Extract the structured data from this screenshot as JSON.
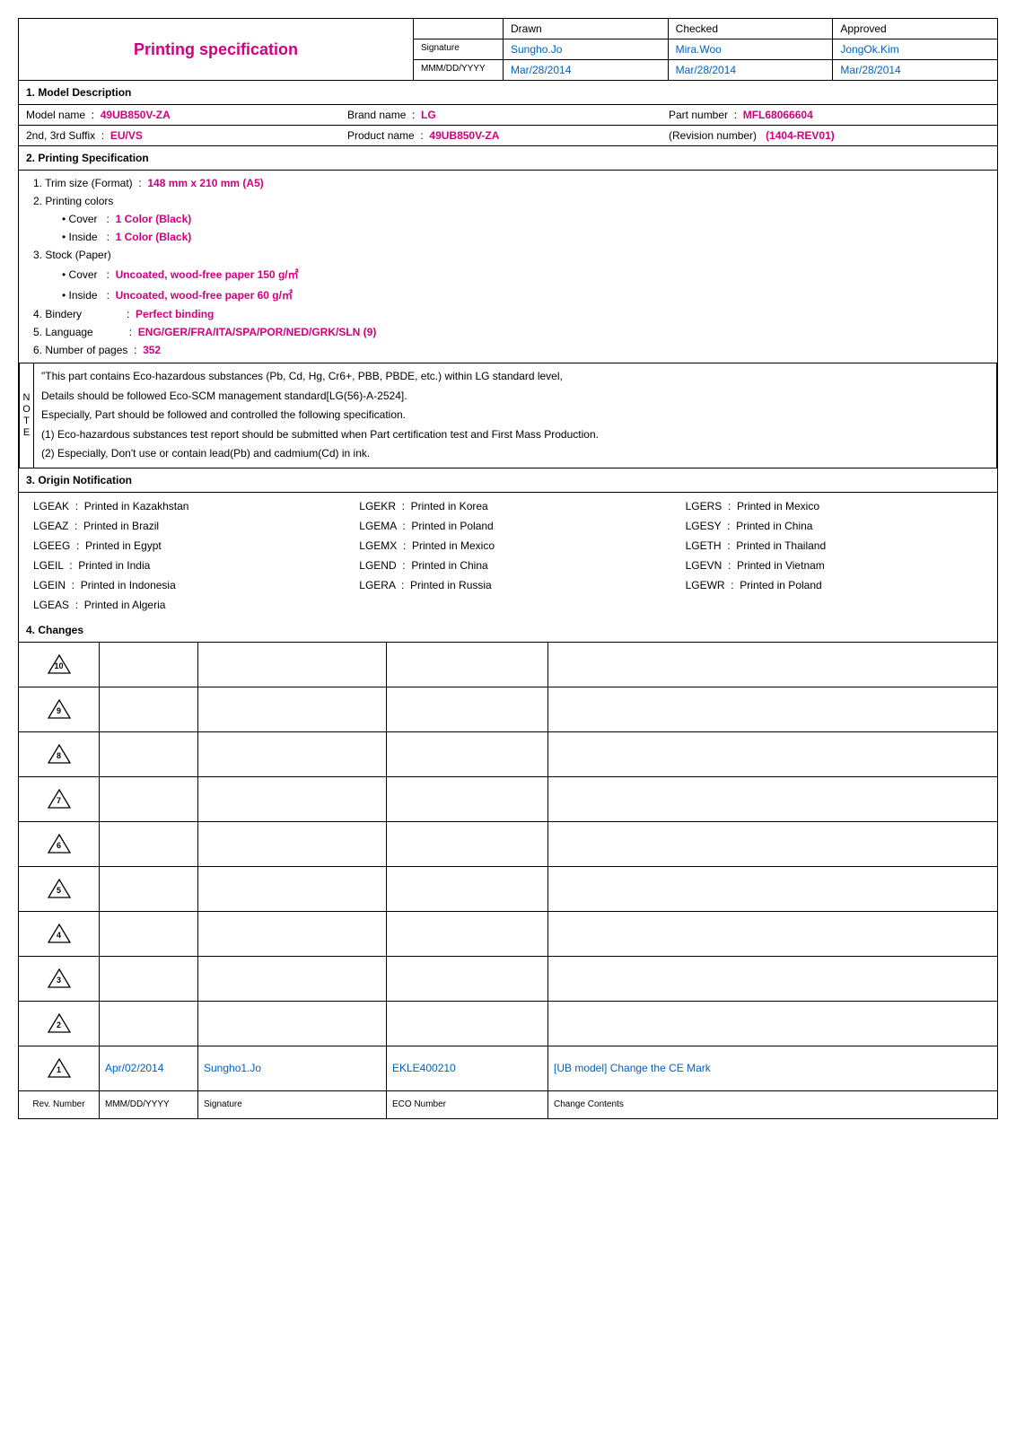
{
  "title": "Printing specification",
  "header": {
    "sig_label": "Signature",
    "date_label": "MMM/DD/YYYY",
    "drawn_label": "Drawn",
    "checked_label": "Checked",
    "approved_label": "Approved",
    "drawn": "Sungho.Jo",
    "checked": "Mira.Woo",
    "approved": "JongOk.Kim",
    "drawn_date": "Mar/28/2014",
    "checked_date": "Mar/28/2014",
    "approved_date": "Mar/28/2014"
  },
  "s1": {
    "head": "1. Model Description",
    "model_label": "Model name",
    "model": "49UB850V-ZA",
    "brand_label": "Brand name",
    "brand": "LG",
    "part_label": "Part number",
    "part": "MFL68066604",
    "suffix_label": "2nd, 3rd Suffix",
    "suffix": "EU/VS",
    "product_label": "Product name",
    "product": "49UB850V-ZA",
    "rev_label": "(Revision number)",
    "rev": "(1404-REV01)"
  },
  "s2": {
    "head": "2. Printing Specification",
    "trim_label": "1. Trim size (Format)",
    "trim": "148 mm x 210 mm (A5)",
    "colors_label": "2. Printing colors",
    "cover_label": "• Cover",
    "cover_color": "1 Color (Black)",
    "inside_label": "• Inside",
    "inside_color": "1 Color (Black)",
    "stock_label": "3. Stock (Paper)",
    "cover_paper": "Uncoated, wood-free paper 150 g/㎡",
    "inside_paper": "Uncoated, wood-free paper 60 g/㎡",
    "bindery_label": "4. Bindery",
    "bindery": "Perfect binding",
    "lang_label": "5. Language",
    "lang": "ENG/GER/FRA/ITA/SPA/POR/NED/GRK/SLN (9)",
    "pages_label": "6. Number of pages",
    "pages": "352"
  },
  "note": {
    "side": "NOTE",
    "l1": "\"This part contains Eco-hazardous substances (Pb, Cd, Hg, Cr6+, PBB, PBDE, etc.) within LG standard level,",
    "l2": "Details should be followed Eco-SCM management standard[LG(56)-A-2524].",
    "l3": "Especially, Part should be followed and controlled the following specification.",
    "l4": "(1) Eco-hazardous substances test report should be submitted when Part certification test and First Mass Production.",
    "l5": "(2) Especially, Don't use or contain lead(Pb) and cadmium(Cd) in ink."
  },
  "s3": {
    "head": "3. Origin Notification",
    "items": [
      {
        "code": "LGEAK",
        "text": "Printed in Kazakhstan"
      },
      {
        "code": "LGEKR",
        "text": "Printed in Korea"
      },
      {
        "code": "LGERS",
        "text": "Printed in Mexico"
      },
      {
        "code": "LGEAZ",
        "text": "Printed in Brazil"
      },
      {
        "code": "LGEMA",
        "text": "Printed in Poland"
      },
      {
        "code": "LGESY",
        "text": "Printed in China"
      },
      {
        "code": "LGEEG",
        "text": "Printed in Egypt"
      },
      {
        "code": "LGEMX",
        "text": "Printed in Mexico"
      },
      {
        "code": "LGETH",
        "text": "Printed in Thailand"
      },
      {
        "code": "LGEIL",
        "text": "Printed in India"
      },
      {
        "code": "LGEND",
        "text": "Printed in China"
      },
      {
        "code": "LGEVN",
        "text": "Printed in Vietnam"
      },
      {
        "code": "LGEIN",
        "text": "Printed in Indonesia"
      },
      {
        "code": "LGERA",
        "text": "Printed in Russia"
      },
      {
        "code": "LGEWR",
        "text": "Printed in Poland"
      },
      {
        "code": "LGEAS",
        "text": "Printed in Algeria"
      }
    ]
  },
  "s4": {
    "head": "4. Changes",
    "row1": {
      "num": "1",
      "date": "Apr/02/2014",
      "sig": "Sungho1.Jo",
      "eco": "EKLE400210",
      "contents": "[UB model] Change the CE Mark"
    },
    "nums": [
      "10",
      "9",
      "8",
      "7",
      "6",
      "5",
      "4",
      "3",
      "2"
    ],
    "footer": {
      "rev": "Rev. Number",
      "date": "MMM/DD/YYYY",
      "sig": "Signature",
      "eco": "ECO Number",
      "contents": "Change Contents"
    }
  }
}
